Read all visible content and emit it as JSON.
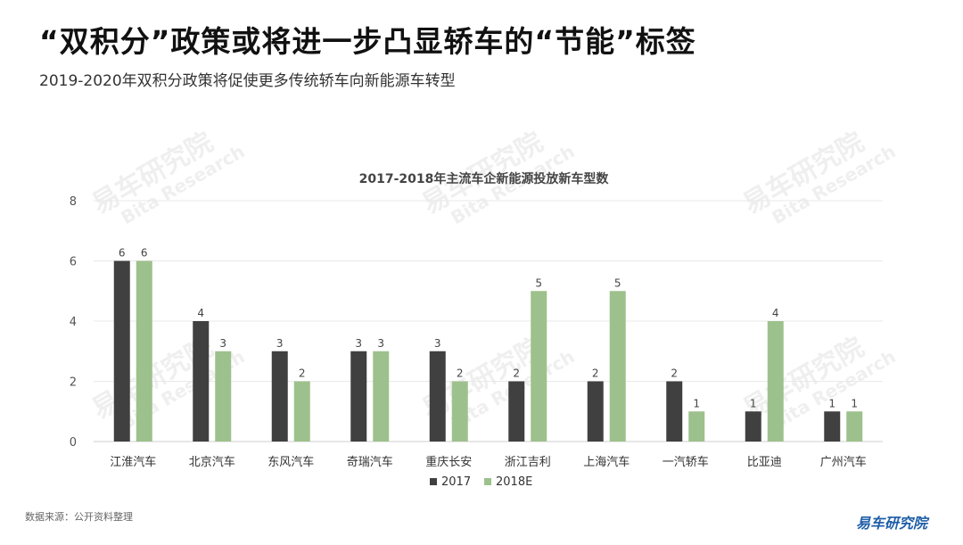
{
  "page": {
    "title": "“双积分”政策或将进一步凸显轿车的“节能”标签",
    "subtitle": "2019-2020年双积分政策将促使更多传统轿车向新能源车转型",
    "source": "数据来源：公开资料整理",
    "brand": "易车研究院",
    "watermark": {
      "cn": "易车研究院",
      "en": "Bita Research"
    }
  },
  "chart_data": {
    "type": "bar",
    "title": "2017-2018年主流车企新能源投放新车型数",
    "categories": [
      "江淮汽车",
      "北京汽车",
      "东风汽车",
      "奇瑞汽车",
      "重庆长安",
      "浙江吉利",
      "上海汽车",
      "一汽轿车",
      "比亚迪",
      "广州汽车"
    ],
    "series": [
      {
        "name": "2017",
        "values": [
          6,
          4,
          3,
          3,
          3,
          2,
          2,
          2,
          1,
          1
        ],
        "color": "#404040"
      },
      {
        "name": "2018E",
        "values": [
          6,
          3,
          2,
          3,
          2,
          5,
          5,
          1,
          4,
          1
        ],
        "color": "#9dc18c"
      }
    ],
    "ylim": [
      0,
      8
    ],
    "yticks": [
      "0",
      "2",
      "4",
      "6",
      "8"
    ],
    "grid": true,
    "legend": "bottom",
    "data_labels": true
  }
}
